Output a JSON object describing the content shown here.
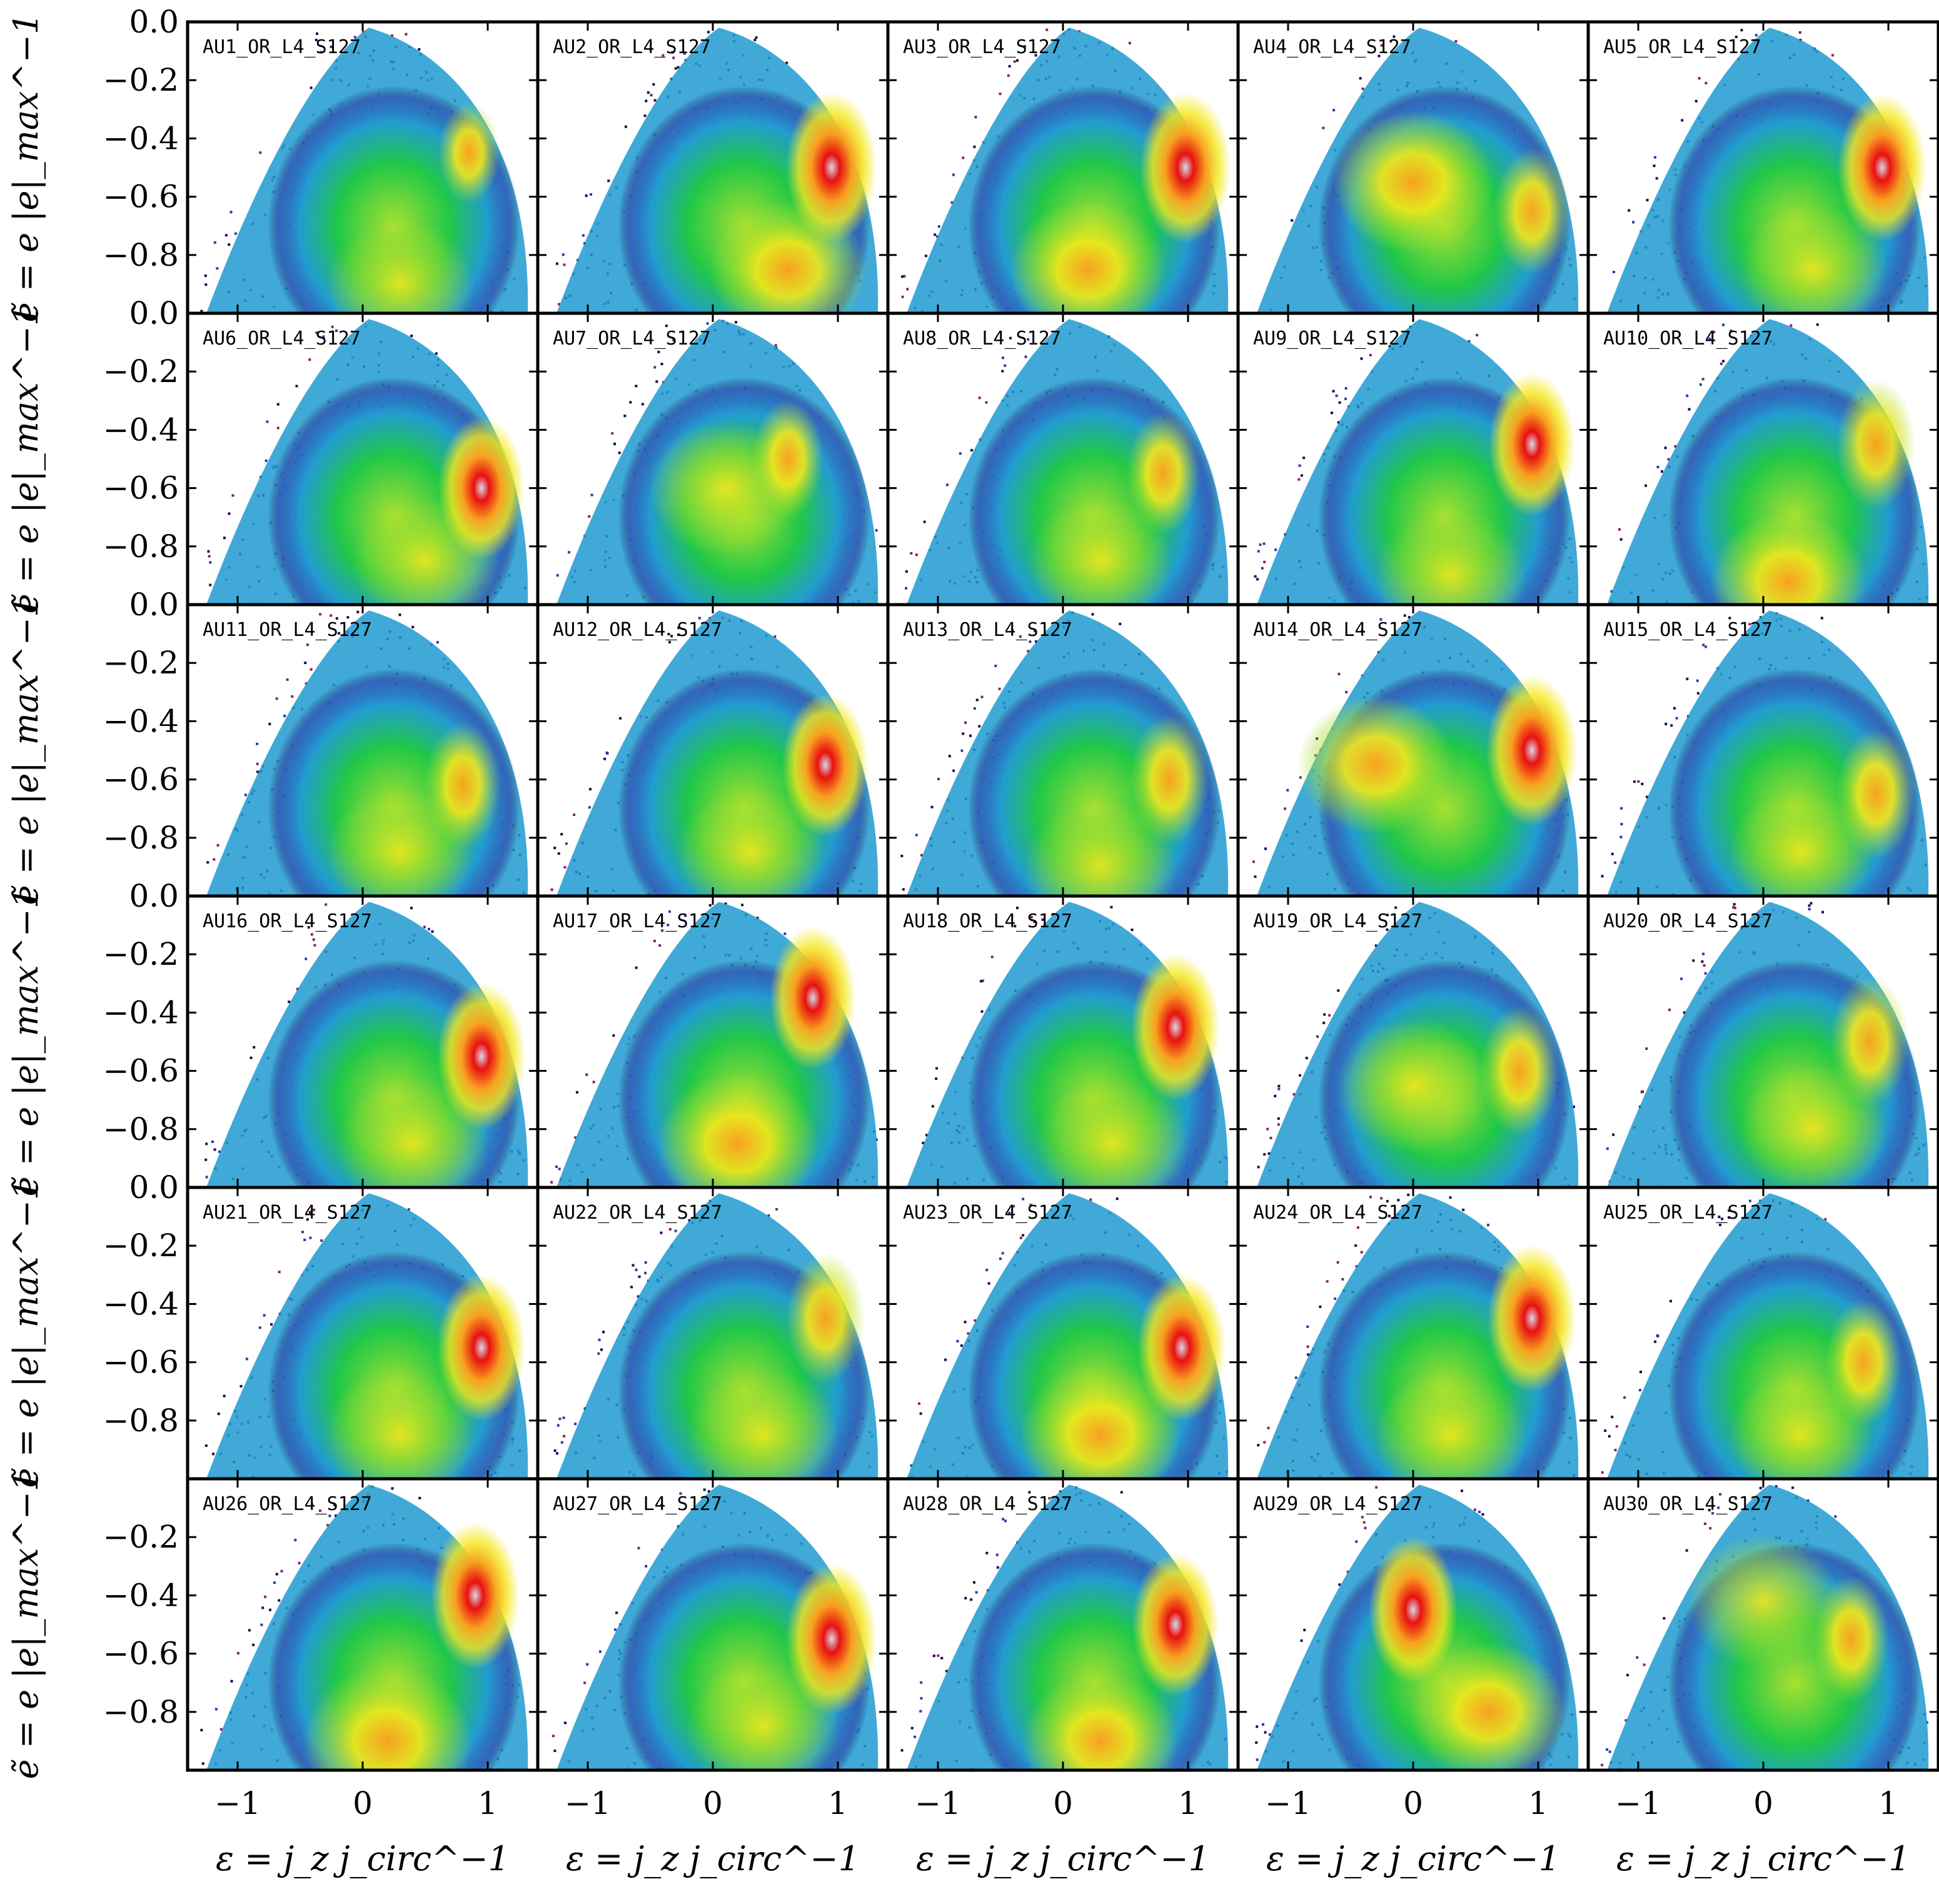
{
  "chart_data": {
    "type": "heatmap",
    "layout": {
      "rows": 6,
      "cols": 5
    },
    "xlabel": "ε = j_z j_circ^−1",
    "ylabel": "ẽ = e |e|_max^−1",
    "xlim": [
      -1.4,
      1.4
    ],
    "ylim": [
      -1.0,
      0.0
    ],
    "xticks": [
      -1,
      0,
      1
    ],
    "xtick_labels": [
      "−1",
      "0",
      "1"
    ],
    "yticks": [
      0.0,
      -0.2,
      -0.4,
      -0.6,
      -0.8
    ],
    "ytick_labels": [
      "0.0",
      "−0.2",
      "−0.4",
      "−0.6",
      "−0.8"
    ],
    "yticks_last_row": [
      -0.2,
      -0.4,
      -0.6,
      -0.8
    ],
    "ytick_labels_last_row": [
      "−0.2",
      "−0.4",
      "−0.6",
      "−0.8"
    ],
    "colormap": [
      "#ffffff",
      "#1a0a4a",
      "#2a3aa8",
      "#1f9ad0",
      "#20c848",
      "#a8e030",
      "#f4e81c",
      "#f8a020",
      "#e81010",
      "#d8d8e8"
    ],
    "panels": [
      {
        "label": "AU1_OR_L4_S127",
        "disk_peak": [
          0.85,
          -0.45,
          0.4
        ],
        "bulge_peak": [
          0.3,
          -0.9,
          0.6
        ]
      },
      {
        "label": "AU2_OR_L4_S127",
        "disk_peak": [
          0.95,
          -0.5,
          1.0
        ],
        "bulge_peak": [
          0.6,
          -0.85,
          0.7
        ]
      },
      {
        "label": "AU3_OR_L4_S127",
        "disk_peak": [
          0.98,
          -0.5,
          1.0
        ],
        "bulge_peak": [
          0.2,
          -0.85,
          0.7
        ]
      },
      {
        "label": "AU4_OR_L4_S127",
        "disk_peak": [
          0.95,
          -0.65,
          0.7
        ],
        "bulge_peak": [
          0.0,
          -0.55,
          0.75
        ]
      },
      {
        "label": "AU5_OR_L4_S127",
        "disk_peak": [
          0.95,
          -0.5,
          0.95
        ],
        "bulge_peak": [
          0.4,
          -0.85,
          0.6
        ]
      },
      {
        "label": "AU6_OR_L4_S127",
        "disk_peak": [
          0.95,
          -0.6,
          0.9
        ],
        "bulge_peak": [
          0.5,
          -0.85,
          0.6
        ]
      },
      {
        "label": "AU7_OR_L4_S127",
        "disk_peak": [
          0.6,
          -0.5,
          0.6
        ],
        "bulge_peak": [
          0.1,
          -0.6,
          0.65
        ]
      },
      {
        "label": "AU8_OR_L4_S127",
        "disk_peak": [
          0.8,
          -0.55,
          0.65
        ],
        "bulge_peak": [
          0.3,
          -0.85,
          0.55
        ]
      },
      {
        "label": "AU9_OR_L4_S127",
        "disk_peak": [
          0.95,
          -0.45,
          0.9
        ],
        "bulge_peak": [
          0.3,
          -0.9,
          0.65
        ]
      },
      {
        "label": "AU10_OR_L4_S127",
        "disk_peak": [
          0.9,
          -0.45,
          0.75
        ],
        "bulge_peak": [
          0.2,
          -0.92,
          0.7
        ]
      },
      {
        "label": "AU11_OR_L4_S127",
        "disk_peak": [
          0.8,
          -0.62,
          0.7
        ],
        "bulge_peak": [
          0.3,
          -0.85,
          0.6
        ]
      },
      {
        "label": "AU12_OR_L4_S127",
        "disk_peak": [
          0.9,
          -0.55,
          0.9
        ],
        "bulge_peak": [
          0.3,
          -0.85,
          0.6
        ]
      },
      {
        "label": "AU13_OR_L4_S127",
        "disk_peak": [
          0.85,
          -0.6,
          0.75
        ],
        "bulge_peak": [
          0.3,
          -0.9,
          0.65
        ]
      },
      {
        "label": "AU14_OR_L4_S127",
        "disk_peak": [
          0.95,
          -0.5,
          1.0
        ],
        "bulge_peak": [
          -0.3,
          -0.55,
          0.7
        ]
      },
      {
        "label": "AU15_OR_L4_S127",
        "disk_peak": [
          0.9,
          -0.65,
          0.75
        ],
        "bulge_peak": [
          0.3,
          -0.85,
          0.55
        ]
      },
      {
        "label": "AU16_OR_L4_S127",
        "disk_peak": [
          0.95,
          -0.55,
          0.95
        ],
        "bulge_peak": [
          0.4,
          -0.85,
          0.65
        ]
      },
      {
        "label": "AU17_OR_L4_S127",
        "disk_peak": [
          0.8,
          -0.35,
          0.9
        ],
        "bulge_peak": [
          0.2,
          -0.85,
          0.75
        ]
      },
      {
        "label": "AU18_OR_L4_S127",
        "disk_peak": [
          0.9,
          -0.45,
          0.95
        ],
        "bulge_peak": [
          0.4,
          -0.85,
          0.65
        ]
      },
      {
        "label": "AU19_OR_L4_S127",
        "disk_peak": [
          0.85,
          -0.6,
          0.75
        ],
        "bulge_peak": [
          0.0,
          -0.65,
          0.65
        ]
      },
      {
        "label": "AU20_OR_L4_S127",
        "disk_peak": [
          0.85,
          -0.5,
          0.75
        ],
        "bulge_peak": [
          0.4,
          -0.8,
          0.6
        ]
      },
      {
        "label": "AU21_OR_L4_S127",
        "disk_peak": [
          0.95,
          -0.55,
          0.95
        ],
        "bulge_peak": [
          0.3,
          -0.85,
          0.65
        ]
      },
      {
        "label": "AU22_OR_L4_S127",
        "disk_peak": [
          0.9,
          -0.45,
          0.75
        ],
        "bulge_peak": [
          0.4,
          -0.85,
          0.65
        ]
      },
      {
        "label": "AU23_OR_L4_S127",
        "disk_peak": [
          0.95,
          -0.55,
          0.95
        ],
        "bulge_peak": [
          0.3,
          -0.85,
          0.75
        ]
      },
      {
        "label": "AU24_OR_L4_S127",
        "disk_peak": [
          0.95,
          -0.45,
          0.95
        ],
        "bulge_peak": [
          0.3,
          -0.85,
          0.65
        ]
      },
      {
        "label": "AU25_OR_L4_S127",
        "disk_peak": [
          0.8,
          -0.6,
          0.7
        ],
        "bulge_peak": [
          0.3,
          -0.85,
          0.55
        ]
      },
      {
        "label": "AU26_OR_L4_S127",
        "disk_peak": [
          0.9,
          -0.4,
          0.95
        ],
        "bulge_peak": [
          0.2,
          -0.9,
          0.85
        ]
      },
      {
        "label": "AU27_OR_L4_S127",
        "disk_peak": [
          0.95,
          -0.55,
          1.0
        ],
        "bulge_peak": [
          0.4,
          -0.85,
          0.65
        ]
      },
      {
        "label": "AU28_OR_L4_S127",
        "disk_peak": [
          0.9,
          -0.5,
          0.9
        ],
        "bulge_peak": [
          0.3,
          -0.9,
          0.7
        ]
      },
      {
        "label": "AU29_OR_L4_S127",
        "disk_peak": [
          0.0,
          -0.45,
          0.95
        ],
        "bulge_peak": [
          0.6,
          -0.8,
          0.7
        ]
      },
      {
        "label": "AU30_OR_L4_S127",
        "disk_peak": [
          0.7,
          -0.55,
          0.7
        ],
        "bulge_peak": [
          0.0,
          -0.42,
          0.65
        ]
      }
    ]
  }
}
